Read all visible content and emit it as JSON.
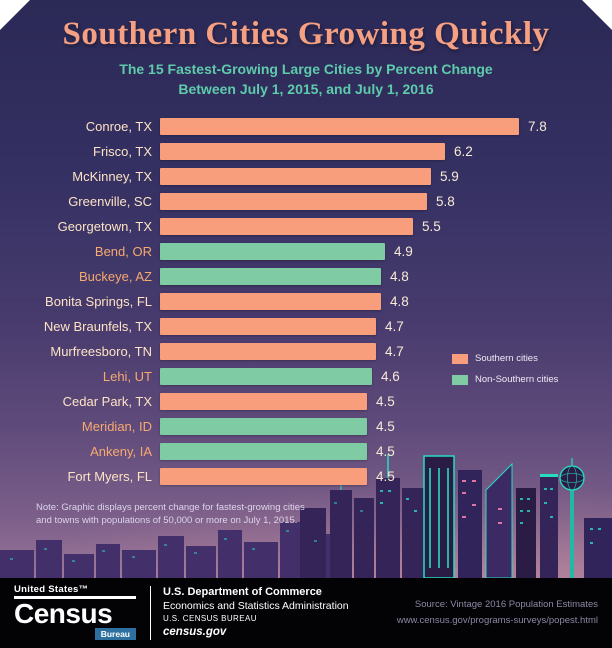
{
  "header": {
    "title": "Southern Cities Growing Quickly",
    "subtitle_line1": "The 15 Fastest-Growing Large Cities by Percent Change",
    "subtitle_line2": "Between July 1, 2015, and July 1, 2016"
  },
  "chart_data": {
    "type": "bar",
    "orientation": "horizontal",
    "title": "Southern Cities Growing Quickly",
    "subtitle": "The 15 Fastest-Growing Large Cities by Percent Change Between July 1, 2015, and July 1, 2016",
    "unit": "percent change",
    "xlim": [
      0,
      8.5
    ],
    "categories": [
      "Conroe, TX",
      "Frisco, TX",
      "McKinney, TX",
      "Greenville, SC",
      "Georgetown, TX",
      "Bend, OR",
      "Buckeye, AZ",
      "Bonita Springs, FL",
      "New Braunfels, TX",
      "Murfreesboro, TN",
      "Lehi, UT",
      "Cedar Park, TX",
      "Meridian, ID",
      "Ankeny, IA",
      "Fort Myers, FL"
    ],
    "values": [
      7.8,
      6.2,
      5.9,
      5.8,
      5.5,
      4.9,
      4.8,
      4.8,
      4.7,
      4.7,
      4.6,
      4.5,
      4.5,
      4.5,
      4.5
    ],
    "regions": [
      "southern",
      "southern",
      "southern",
      "southern",
      "southern",
      "non_southern",
      "non_southern",
      "southern",
      "southern",
      "southern",
      "non_southern",
      "southern",
      "non_southern",
      "non_southern",
      "southern"
    ],
    "legend": [
      {
        "label": "Southern cities",
        "color": "#f89e7d"
      },
      {
        "label": "Non-Southern cities",
        "color": "#7fcba3"
      }
    ],
    "colors": {
      "southern_bar": "#f89e7d",
      "non_southern_bar": "#7fcba3",
      "southern_label": "#fde3c4",
      "non_southern_label": "#f8a96e",
      "value_label": "#f7ead6",
      "title": "#f5a083",
      "subtitle": "#5ecbab"
    }
  },
  "note": {
    "line1": "Note: Graphic displays percent change for fastest-growing cities",
    "line2": "and towns with populations of 50,000 or more on July 1, 2015."
  },
  "footer": {
    "logo_top": "United States™",
    "logo_main": "Census",
    "logo_bureau": "Bureau",
    "dept_line1": "U.S. Department of Commerce",
    "dept_line2": "Economics and Statistics Administration",
    "dept_line3": "U.S. CENSUS BUREAU",
    "dept_line4": "census.gov",
    "source_line1": "Source: Vintage 2016 Population Estimates",
    "source_line2": "www.census.gov/programs-surveys/popest.html"
  }
}
